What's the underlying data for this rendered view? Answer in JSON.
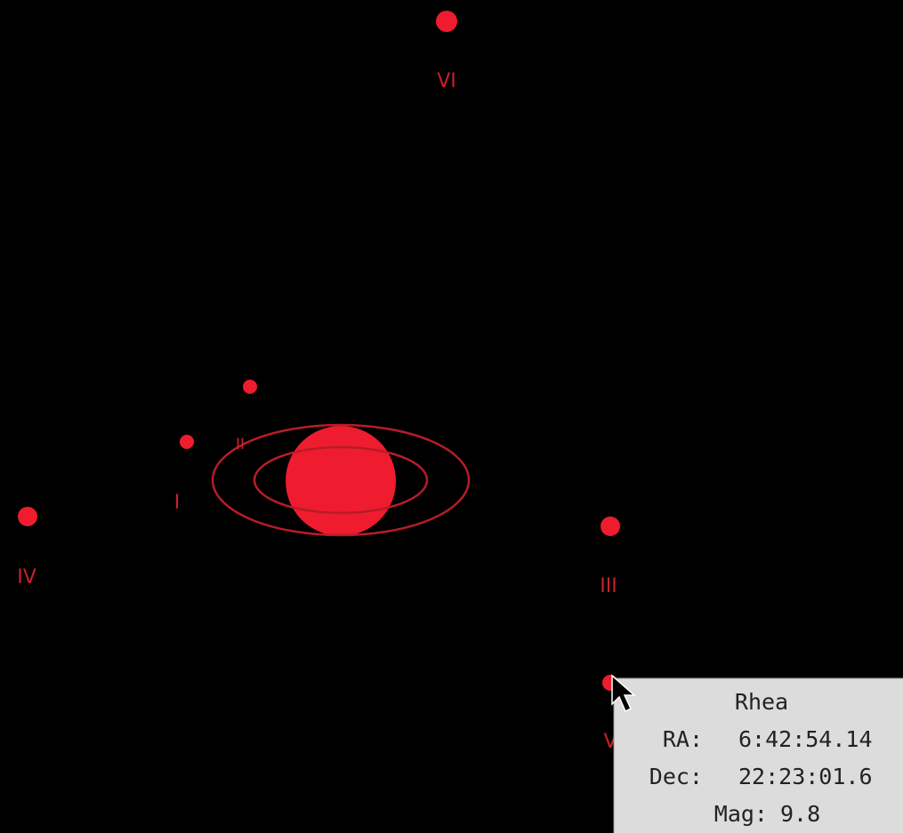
{
  "moons": [
    {
      "label": "VI"
    },
    {
      "label": "II"
    },
    {
      "label": "I"
    },
    {
      "label": "IV"
    },
    {
      "label": "III"
    },
    {
      "label": "V"
    }
  ],
  "tooltip": {
    "title": "Rhea",
    "rows": [
      {
        "label": "RA:",
        "value": "6:42:54.14"
      },
      {
        "label": "Dec:",
        "value": "22:23:01.6"
      },
      {
        "label": "Mag:",
        "value": "9.8"
      }
    ]
  }
}
